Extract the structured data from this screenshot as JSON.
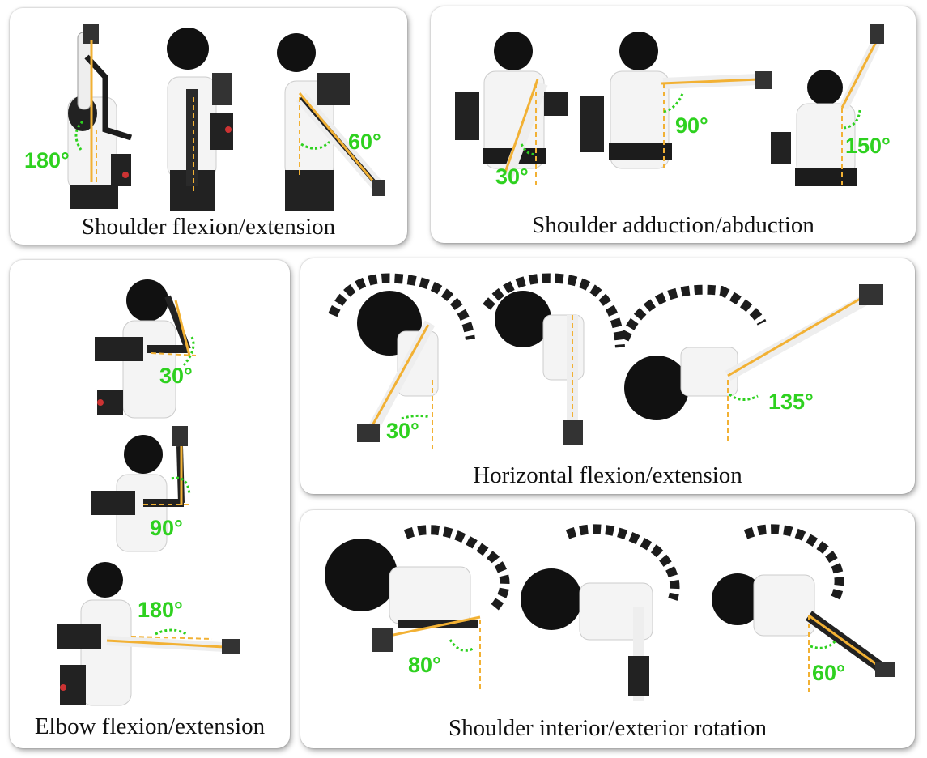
{
  "panels": {
    "shoulder_flexion": {
      "caption": "Shoulder flexion/extension",
      "angles": [
        "180°",
        "60°"
      ]
    },
    "shoulder_abduction": {
      "caption": "Shoulder adduction/abduction",
      "angles": [
        "30°",
        "90°",
        "150°"
      ]
    },
    "elbow": {
      "caption": "Elbow flexion/extension",
      "angles": [
        "30°",
        "90°",
        "180°"
      ]
    },
    "horizontal": {
      "caption": "Horizontal flexion/extension",
      "angles": [
        "30°",
        "135°"
      ]
    },
    "rotation": {
      "caption": "Shoulder interior/exterior rotation",
      "angles": [
        "80°",
        "60°"
      ]
    }
  },
  "colors": {
    "angle_text": "#2ed11f",
    "reference_line": "#f2b134",
    "arc": "#2ed11f",
    "exoskeleton": "#1c1c1c",
    "shirt": "#f4f4f4"
  }
}
